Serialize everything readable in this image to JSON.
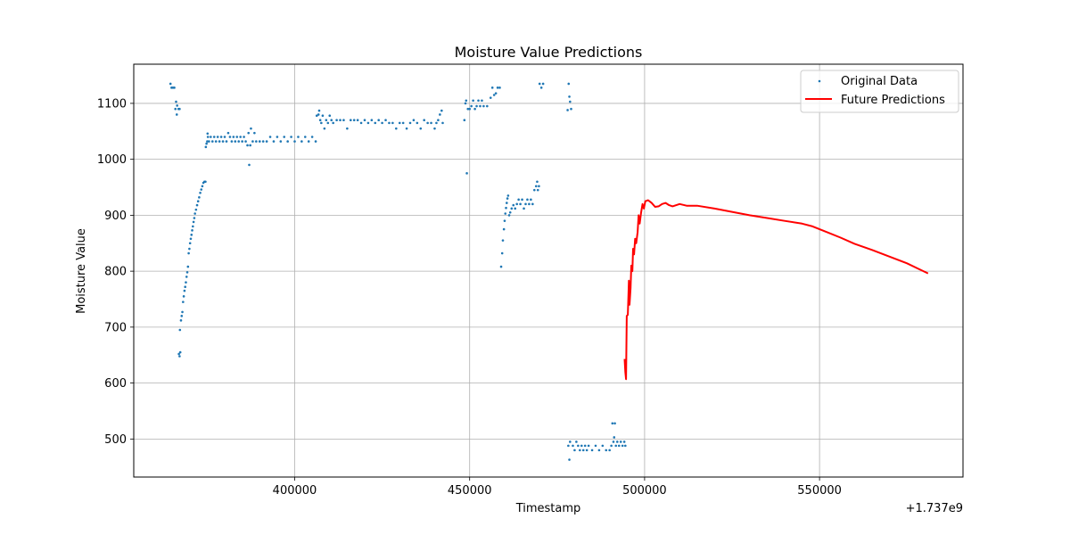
{
  "chart_data": {
    "type": "scatter",
    "title": "Moisture Value Predictions",
    "xlabel": "Timestamp",
    "ylabel": "Moisture Value",
    "x_offset_label": "+1.737e9",
    "xlim": [
      354000,
      591000
    ],
    "ylim": [
      432,
      1170
    ],
    "xticks": [
      400000,
      450000,
      500000,
      550000
    ],
    "xtick_labels": [
      "400000",
      "450000",
      "500000",
      "550000"
    ],
    "yticks": [
      500,
      600,
      700,
      800,
      900,
      1000,
      1100
    ],
    "ytick_labels": [
      "500",
      "600",
      "700",
      "800",
      "900",
      "1000",
      "1100"
    ],
    "grid": true,
    "legend": {
      "position": "top-right",
      "entries": [
        "Original Data",
        "Future Predictions"
      ]
    },
    "series": [
      {
        "name": "Original Data",
        "kind": "scatter",
        "color": "#1f77b4",
        "points": [
          [
            364500,
            1135
          ],
          [
            364800,
            1128
          ],
          [
            365200,
            1128
          ],
          [
            365600,
            1128
          ],
          [
            365900,
            1090
          ],
          [
            366100,
            1103
          ],
          [
            366300,
            1080
          ],
          [
            366400,
            1096
          ],
          [
            366800,
            1090
          ],
          [
            367100,
            1090
          ],
          [
            366900,
            652
          ],
          [
            367100,
            648
          ],
          [
            367300,
            655
          ],
          [
            367200,
            695
          ],
          [
            367500,
            712
          ],
          [
            367700,
            720
          ],
          [
            367900,
            727
          ],
          [
            368100,
            745
          ],
          [
            368300,
            755
          ],
          [
            368500,
            765
          ],
          [
            368700,
            772
          ],
          [
            368900,
            780
          ],
          [
            369100,
            790
          ],
          [
            369300,
            798
          ],
          [
            369500,
            808
          ],
          [
            369700,
            832
          ],
          [
            369900,
            840
          ],
          [
            370100,
            850
          ],
          [
            370300,
            858
          ],
          [
            370500,
            865
          ],
          [
            370700,
            873
          ],
          [
            370900,
            880
          ],
          [
            371100,
            888
          ],
          [
            371300,
            895
          ],
          [
            371500,
            903
          ],
          [
            371800,
            910
          ],
          [
            372100,
            918
          ],
          [
            372400,
            925
          ],
          [
            372700,
            932
          ],
          [
            373000,
            940
          ],
          [
            373300,
            946
          ],
          [
            373600,
            952
          ],
          [
            373900,
            958
          ],
          [
            374200,
            960
          ],
          [
            374500,
            960
          ],
          [
            374600,
            1022
          ],
          [
            374800,
            1028
          ],
          [
            375000,
            1032
          ],
          [
            375100,
            1046
          ],
          [
            375200,
            1040
          ],
          [
            375500,
            1032
          ],
          [
            376000,
            1040
          ],
          [
            376500,
            1032
          ],
          [
            377000,
            1040
          ],
          [
            377500,
            1032
          ],
          [
            378000,
            1040
          ],
          [
            378500,
            1032
          ],
          [
            379000,
            1040
          ],
          [
            379500,
            1032
          ],
          [
            380000,
            1040
          ],
          [
            380500,
            1032
          ],
          [
            381000,
            1047
          ],
          [
            381500,
            1040
          ],
          [
            382000,
            1032
          ],
          [
            382500,
            1040
          ],
          [
            383000,
            1032
          ],
          [
            383500,
            1040
          ],
          [
            384000,
            1032
          ],
          [
            384500,
            1040
          ],
          [
            385000,
            1032
          ],
          [
            385500,
            1040
          ],
          [
            386000,
            1032
          ],
          [
            386500,
            1025
          ],
          [
            386800,
            1047
          ],
          [
            387000,
            990
          ],
          [
            387300,
            1025
          ],
          [
            387500,
            1055
          ],
          [
            388000,
            1032
          ],
          [
            388500,
            1047
          ],
          [
            389000,
            1032
          ],
          [
            390000,
            1032
          ],
          [
            391000,
            1032
          ],
          [
            392000,
            1032
          ],
          [
            393000,
            1040
          ],
          [
            394000,
            1032
          ],
          [
            395000,
            1040
          ],
          [
            396000,
            1032
          ],
          [
            397000,
            1040
          ],
          [
            398000,
            1032
          ],
          [
            399000,
            1040
          ],
          [
            400000,
            1032
          ],
          [
            401000,
            1040
          ],
          [
            402000,
            1032
          ],
          [
            403000,
            1040
          ],
          [
            404000,
            1032
          ],
          [
            405000,
            1040
          ],
          [
            406000,
            1032
          ],
          [
            406300,
            1078
          ],
          [
            406800,
            1080
          ],
          [
            407000,
            1087
          ],
          [
            407300,
            1070
          ],
          [
            407600,
            1065
          ],
          [
            408000,
            1078
          ],
          [
            408500,
            1055
          ],
          [
            409000,
            1070
          ],
          [
            409500,
            1065
          ],
          [
            410000,
            1078
          ],
          [
            410500,
            1070
          ],
          [
            411000,
            1065
          ],
          [
            412000,
            1070
          ],
          [
            413000,
            1070
          ],
          [
            414000,
            1070
          ],
          [
            415000,
            1055
          ],
          [
            416000,
            1070
          ],
          [
            417000,
            1070
          ],
          [
            418000,
            1070
          ],
          [
            419000,
            1065
          ],
          [
            420000,
            1070
          ],
          [
            421000,
            1065
          ],
          [
            422000,
            1070
          ],
          [
            423000,
            1065
          ],
          [
            424000,
            1070
          ],
          [
            425000,
            1065
          ],
          [
            426000,
            1070
          ],
          [
            427000,
            1065
          ],
          [
            428000,
            1065
          ],
          [
            429000,
            1055
          ],
          [
            430000,
            1065
          ],
          [
            431000,
            1065
          ],
          [
            432000,
            1055
          ],
          [
            433000,
            1065
          ],
          [
            434000,
            1070
          ],
          [
            435000,
            1065
          ],
          [
            436000,
            1055
          ],
          [
            437000,
            1070
          ],
          [
            438000,
            1065
          ],
          [
            439000,
            1065
          ],
          [
            440000,
            1055
          ],
          [
            440500,
            1065
          ],
          [
            441000,
            1070
          ],
          [
            441500,
            1080
          ],
          [
            442000,
            1087
          ],
          [
            442300,
            1065
          ],
          [
            448500,
            1070
          ],
          [
            448800,
            1100
          ],
          [
            449000,
            1105
          ],
          [
            449200,
            975
          ],
          [
            449500,
            1090
          ],
          [
            450000,
            1090
          ],
          [
            450500,
            1095
          ],
          [
            451000,
            1105
          ],
          [
            451500,
            1090
          ],
          [
            452000,
            1095
          ],
          [
            452500,
            1105
          ],
          [
            453000,
            1095
          ],
          [
            453500,
            1105
          ],
          [
            454000,
            1095
          ],
          [
            455000,
            1095
          ],
          [
            456000,
            1110
          ],
          [
            456500,
            1128
          ],
          [
            457000,
            1115
          ],
          [
            457500,
            1118
          ],
          [
            458000,
            1128
          ],
          [
            458600,
            1128
          ],
          [
            459000,
            808
          ],
          [
            459300,
            832
          ],
          [
            459500,
            855
          ],
          [
            459800,
            875
          ],
          [
            460000,
            890
          ],
          [
            460200,
            903
          ],
          [
            460400,
            913
          ],
          [
            460600,
            922
          ],
          [
            460800,
            930
          ],
          [
            461000,
            935
          ],
          [
            461300,
            900
          ],
          [
            461600,
            905
          ],
          [
            462000,
            912
          ],
          [
            462500,
            918
          ],
          [
            463000,
            912
          ],
          [
            463500,
            920
          ],
          [
            464000,
            928
          ],
          [
            464500,
            920
          ],
          [
            465000,
            928
          ],
          [
            465500,
            912
          ],
          [
            466000,
            920
          ],
          [
            466500,
            928
          ],
          [
            467000,
            920
          ],
          [
            467500,
            928
          ],
          [
            468000,
            920
          ],
          [
            468500,
            945
          ],
          [
            469000,
            952
          ],
          [
            469300,
            960
          ],
          [
            469500,
            945
          ],
          [
            469800,
            952
          ],
          [
            470000,
            1135
          ],
          [
            470500,
            1128
          ],
          [
            471000,
            1135
          ],
          [
            478200,
            488
          ],
          [
            478500,
            463
          ],
          [
            478700,
            495
          ],
          [
            478000,
            1088
          ],
          [
            478300,
            1135
          ],
          [
            478500,
            1112
          ],
          [
            478700,
            1103
          ],
          [
            479000,
            1090
          ],
          [
            479500,
            488
          ],
          [
            480000,
            480
          ],
          [
            480500,
            495
          ],
          [
            481000,
            488
          ],
          [
            481500,
            480
          ],
          [
            482000,
            488
          ],
          [
            482500,
            480
          ],
          [
            483000,
            488
          ],
          [
            483500,
            480
          ],
          [
            484000,
            488
          ],
          [
            485000,
            480
          ],
          [
            486000,
            488
          ],
          [
            487000,
            480
          ],
          [
            488000,
            488
          ],
          [
            489000,
            480
          ],
          [
            490000,
            480
          ],
          [
            490500,
            488
          ],
          [
            490800,
            528
          ],
          [
            491100,
            495
          ],
          [
            491300,
            503
          ],
          [
            491500,
            528
          ],
          [
            491800,
            488
          ],
          [
            492200,
            495
          ],
          [
            492700,
            488
          ],
          [
            493200,
            495
          ],
          [
            493700,
            488
          ],
          [
            494200,
            495
          ],
          [
            494500,
            488
          ]
        ]
      },
      {
        "name": "Future Predictions",
        "kind": "line",
        "color": "#ff0000",
        "points": [
          [
            494300,
            643
          ],
          [
            494500,
            620
          ],
          [
            494700,
            607
          ],
          [
            494900,
            720
          ],
          [
            495200,
            722
          ],
          [
            495500,
            783
          ],
          [
            495700,
            740
          ],
          [
            496000,
            770
          ],
          [
            496200,
            810
          ],
          [
            496500,
            800
          ],
          [
            496700,
            840
          ],
          [
            497000,
            830
          ],
          [
            497300,
            858
          ],
          [
            497600,
            850
          ],
          [
            498000,
            870
          ],
          [
            498300,
            900
          ],
          [
            498600,
            885
          ],
          [
            499000,
            905
          ],
          [
            499400,
            920
          ],
          [
            499800,
            912
          ],
          [
            500200,
            925
          ],
          [
            501000,
            927
          ],
          [
            502000,
            922
          ],
          [
            503000,
            915
          ],
          [
            504000,
            916
          ],
          [
            505000,
            920
          ],
          [
            506000,
            922
          ],
          [
            507000,
            918
          ],
          [
            508000,
            916
          ],
          [
            510000,
            920
          ],
          [
            512000,
            917
          ],
          [
            515000,
            917
          ],
          [
            520000,
            912
          ],
          [
            525000,
            906
          ],
          [
            530000,
            900
          ],
          [
            535000,
            895
          ],
          [
            540000,
            890
          ],
          [
            545000,
            885
          ],
          [
            548000,
            880
          ],
          [
            552000,
            870
          ],
          [
            556000,
            860
          ],
          [
            560000,
            849
          ],
          [
            565000,
            838
          ],
          [
            570000,
            826
          ],
          [
            575000,
            814
          ],
          [
            578000,
            805
          ],
          [
            581000,
            796
          ]
        ]
      }
    ]
  }
}
